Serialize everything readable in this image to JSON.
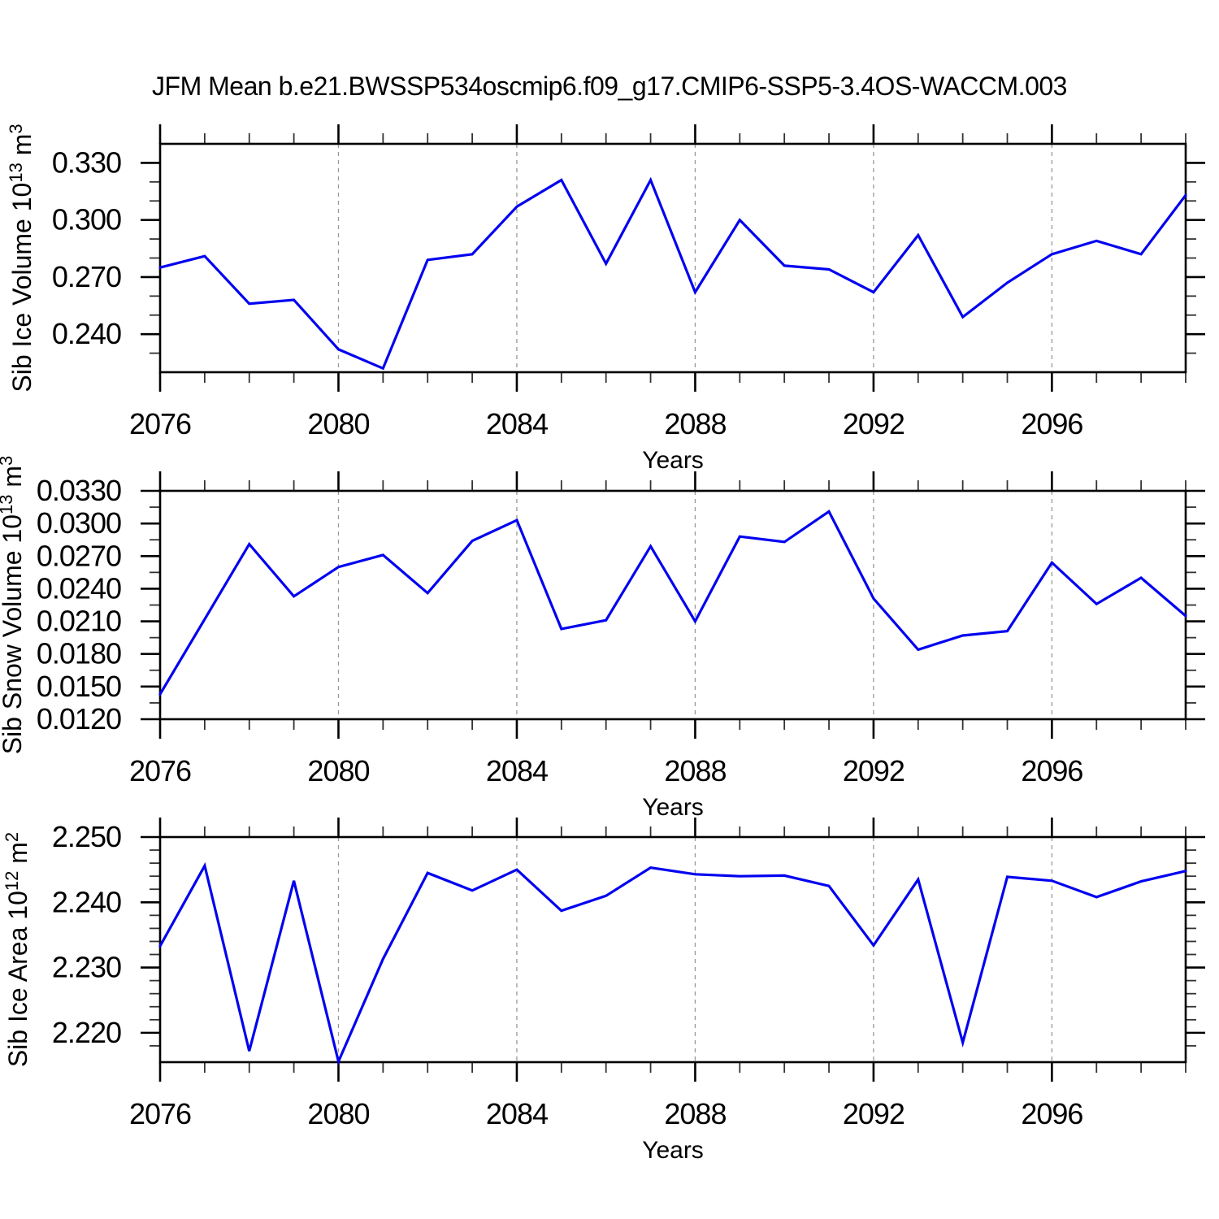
{
  "figure": {
    "title": "JFM Mean b.e21.BWSSP534oscmip6.f09_g17.CMIP6-SSP5-3.4OS-WACCM.003",
    "colors": {
      "line": "#0202f0",
      "grid": "#999999",
      "axis": "#000000",
      "minor_tick": "#333333",
      "background": "#ffffff"
    }
  },
  "chart_data": [
    {
      "type": "line",
      "ylabel": "Sib Ice Volume 10^13 m^3",
      "xlabel": "Years",
      "x": [
        2076,
        2077,
        2078,
        2079,
        2080,
        2081,
        2082,
        2083,
        2084,
        2085,
        2086,
        2087,
        2088,
        2089,
        2090,
        2091,
        2092,
        2093,
        2094,
        2095,
        2096,
        2097,
        2098,
        2099
      ],
      "values": [
        0.275,
        0.281,
        0.256,
        0.258,
        0.232,
        0.222,
        0.279,
        0.282,
        0.307,
        0.321,
        0.277,
        0.321,
        0.262,
        0.3,
        0.276,
        0.274,
        0.262,
        0.292,
        0.249,
        0.267,
        0.282,
        0.289,
        0.282,
        0.313
      ],
      "xlim": [
        2076,
        2099
      ],
      "ylim": [
        0.22,
        0.34
      ],
      "ytick_major": [
        0.24,
        0.27,
        0.3,
        0.33
      ],
      "ytick_labels": [
        "0.240",
        "0.270",
        "0.300",
        "0.330"
      ],
      "ytick_minor_step": 0.01,
      "xtick_major": [
        2076,
        2080,
        2084,
        2088,
        2092,
        2096
      ],
      "xtick_labels": [
        "2076",
        "2080",
        "2084",
        "2088",
        "2092",
        "2096"
      ],
      "xtick_minor_step": 1,
      "grid_x": [
        2080,
        2084,
        2088,
        2092,
        2096
      ],
      "grid_style": "dashed-vertical",
      "legend": "none"
    },
    {
      "type": "line",
      "ylabel": "Sib Snow Volume 10^13 m^3",
      "xlabel": "Years",
      "x": [
        2076,
        2077,
        2078,
        2079,
        2080,
        2081,
        2082,
        2083,
        2084,
        2085,
        2086,
        2087,
        2088,
        2089,
        2090,
        2091,
        2092,
        2093,
        2094,
        2095,
        2096,
        2097,
        2098,
        2099
      ],
      "values": [
        0.0143,
        0.0212,
        0.0281,
        0.0233,
        0.026,
        0.0271,
        0.0236,
        0.0284,
        0.0303,
        0.0203,
        0.0211,
        0.0279,
        0.021,
        0.0288,
        0.0283,
        0.0311,
        0.0231,
        0.0184,
        0.0197,
        0.0201,
        0.0264,
        0.0226,
        0.025,
        0.0215
      ],
      "xlim": [
        2076,
        2099
      ],
      "ylim": [
        0.012,
        0.033
      ],
      "ytick_major": [
        0.012,
        0.015,
        0.018,
        0.021,
        0.024,
        0.027,
        0.03,
        0.033
      ],
      "ytick_labels": [
        "0.0120",
        "0.0150",
        "0.0180",
        "0.0210",
        "0.0240",
        "0.0270",
        "0.0300",
        "0.0330"
      ],
      "ytick_minor_step": 0.0015,
      "xtick_major": [
        2076,
        2080,
        2084,
        2088,
        2092,
        2096
      ],
      "xtick_labels": [
        "2076",
        "2080",
        "2084",
        "2088",
        "2092",
        "2096"
      ],
      "xtick_minor_step": 1,
      "grid_x": [
        2080,
        2084,
        2088,
        2092,
        2096
      ],
      "grid_style": "dashed-vertical",
      "legend": "none"
    },
    {
      "type": "line",
      "ylabel": "Sib Ice Area 10^12 m^2",
      "xlabel": "Years",
      "x": [
        2076,
        2077,
        2078,
        2079,
        2080,
        2081,
        2082,
        2083,
        2084,
        2085,
        2086,
        2087,
        2088,
        2089,
        2090,
        2091,
        2092,
        2093,
        2094,
        2095,
        2096,
        2097,
        2098,
        2099
      ],
      "values": [
        2.2333,
        2.2456,
        2.2172,
        2.2433,
        2.2156,
        2.2313,
        2.2445,
        2.2418,
        2.245,
        2.2387,
        2.241,
        2.2453,
        2.2443,
        2.244,
        2.2441,
        2.2425,
        2.2334,
        2.2435,
        2.2185,
        2.2439,
        2.2433,
        2.2408,
        2.2432,
        2.2448
      ],
      "xlim": [
        2076,
        2099
      ],
      "ylim": [
        2.2155,
        2.25
      ],
      "ytick_major": [
        2.22,
        2.23,
        2.24,
        2.25
      ],
      "ytick_labels": [
        "2.220",
        "2.230",
        "2.240",
        "2.250"
      ],
      "ytick_minor_step": 0.002,
      "xtick_major": [
        2076,
        2080,
        2084,
        2088,
        2092,
        2096
      ],
      "xtick_labels": [
        "2076",
        "2080",
        "2084",
        "2088",
        "2092",
        "2096"
      ],
      "xtick_minor_step": 1,
      "grid_x": [
        2080,
        2084,
        2088,
        2092,
        2096
      ],
      "grid_style": "dashed-vertical",
      "legend": "none"
    }
  ]
}
